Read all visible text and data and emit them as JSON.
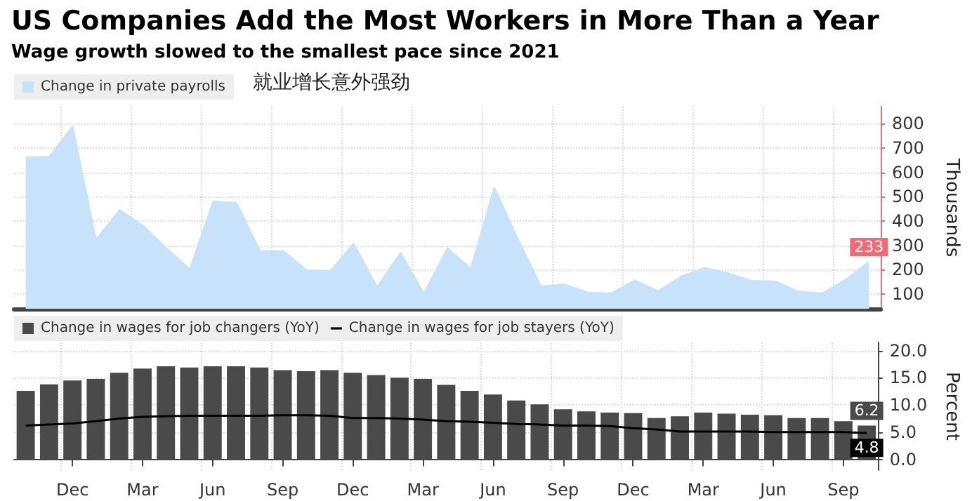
{
  "chart_data": [
    {
      "type": "area",
      "title": "US Companies Add the Most Workers in More Than a Year",
      "subtitle": "Wage growth slowed to the smallest pace since 2021",
      "ylabel": "Thousands",
      "annotations": [
        "就业增长意外强劲"
      ],
      "categories": [
        null,
        null,
        null,
        null,
        null,
        null,
        null,
        null,
        null,
        null,
        null,
        null,
        null,
        null,
        null,
        null,
        null,
        null,
        null,
        null,
        null,
        null,
        null,
        null,
        null,
        null,
        null,
        null,
        null,
        null,
        null,
        null,
        null,
        null,
        null,
        null,
        null
      ],
      "series": [
        {
          "name": "Change in private payrolls",
          "color": "#c9e2fb",
          "values": [
            664,
            664,
            790,
            325,
            447,
            382,
            290,
            203,
            482,
            476,
            278,
            278,
            198,
            195,
            308,
            130,
            271,
            104,
            290,
            206,
            539,
            330,
            133,
            140,
            107,
            104,
            158,
            113,
            174,
            208,
            186,
            155,
            153,
            111,
            104,
            160,
            233
          ],
          "value_labels": [
            null,
            null,
            null,
            null,
            null,
            null,
            null,
            null,
            null,
            null,
            null,
            null,
            null,
            null,
            null,
            null,
            null,
            null,
            null,
            null,
            null,
            null,
            null,
            null,
            null,
            null,
            null,
            null,
            null,
            null,
            null,
            null,
            null,
            null,
            null,
            null,
            "233"
          ]
        }
      ],
      "ylim": [
        40,
        870
      ],
      "yticks": [
        100,
        200,
        300,
        400,
        500,
        600,
        700,
        800
      ],
      "tick_labels": "y",
      "grid": true,
      "legend": "top left",
      "marker": "none"
    },
    {
      "type": "bar",
      "ylabel": "Percent",
      "categories": [
        null,
        null,
        "Dec",
        null,
        null,
        "Mar",
        null,
        null,
        "Jun",
        null,
        null,
        "Sep",
        null,
        null,
        "Dec",
        null,
        null,
        "Mar",
        null,
        null,
        "Jun",
        null,
        null,
        "Sep",
        null,
        null,
        "Dec",
        null,
        null,
        "Mar",
        null,
        null,
        "Jun",
        null,
        null,
        "Sep",
        null
      ],
      "series": [
        {
          "name": "Change in wages for job changers (YoY)",
          "color": "#4a4a4a",
          "values": [
            12.6,
            13.8,
            14.5,
            14.8,
            15.9,
            16.7,
            17.1,
            16.9,
            17.1,
            17.1,
            16.9,
            16.4,
            16.2,
            16.4,
            15.9,
            15.5,
            15.0,
            14.8,
            13.7,
            12.6,
            11.9,
            10.8,
            10.1,
            9.2,
            8.8,
            8.6,
            8.5,
            7.6,
            7.9,
            8.6,
            8.4,
            8.2,
            8.1,
            7.6,
            7.6,
            7.0,
            6.2
          ],
          "value_labels": [
            null,
            null,
            null,
            null,
            null,
            null,
            null,
            null,
            null,
            null,
            null,
            null,
            null,
            null,
            null,
            null,
            null,
            null,
            null,
            null,
            null,
            null,
            null,
            null,
            null,
            null,
            null,
            null,
            null,
            null,
            null,
            null,
            null,
            null,
            null,
            null,
            "6.2"
          ]
        },
        {
          "name": "Change in wages for job stayers (YoY)",
          "type": "line",
          "color": "#000000",
          "values": [
            6.2,
            6.4,
            6.6,
            7.0,
            7.5,
            7.8,
            7.9,
            8.0,
            8.0,
            8.0,
            8.0,
            8.1,
            8.1,
            8.0,
            7.6,
            7.6,
            7.5,
            7.3,
            7.0,
            6.9,
            6.7,
            6.5,
            6.4,
            6.2,
            6.2,
            6.1,
            5.7,
            5.5,
            5.1,
            5.1,
            5.1,
            5.1,
            5.0,
            5.0,
            5.0,
            5.0,
            4.8
          ],
          "value_labels": [
            null,
            null,
            null,
            null,
            null,
            null,
            null,
            null,
            null,
            null,
            null,
            null,
            null,
            null,
            null,
            null,
            null,
            null,
            null,
            null,
            null,
            null,
            null,
            null,
            null,
            null,
            null,
            null,
            null,
            null,
            null,
            null,
            null,
            null,
            null,
            null,
            "4.8"
          ]
        }
      ],
      "ylim": [
        -2,
        21.5
      ],
      "yticks": [
        {
          "value": 0,
          "label": "0.0"
        },
        {
          "value": 5,
          "label": "5.0"
        },
        {
          "value": 10,
          "label": "10.0"
        },
        {
          "value": 15,
          "label": "15.0"
        },
        {
          "value": 20,
          "label": "20.0"
        }
      ],
      "grid": true,
      "legend": "top left",
      "marker": "none"
    }
  ]
}
